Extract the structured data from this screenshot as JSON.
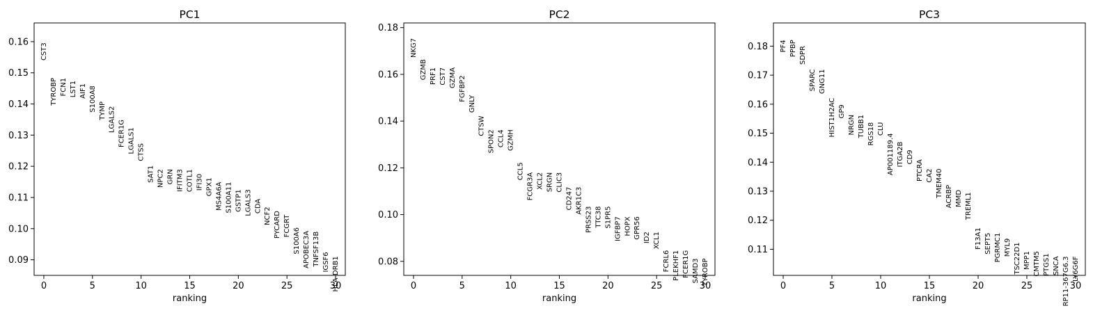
{
  "chart_data": [
    {
      "type": "scatter",
      "title": "PC1",
      "xlabel": "ranking",
      "ylabel": "",
      "xlim": [
        -1,
        31
      ],
      "ylim": [
        0.085,
        0.166
      ],
      "xticks": [
        0,
        5,
        10,
        15,
        20,
        25,
        30
      ],
      "yticks": [
        0.09,
        0.1,
        0.11,
        0.12,
        0.13,
        0.14,
        0.15,
        0.16
      ],
      "ytick_labels": [
        "0.09",
        "0.10",
        "0.11",
        "0.12",
        "0.13",
        "0.14",
        "0.15",
        "0.16"
      ],
      "points": [
        {
          "x": 0,
          "y": 0.1597,
          "label": "CST3"
        },
        {
          "x": 1,
          "y": 0.1484,
          "label": "TYROBP"
        },
        {
          "x": 2,
          "y": 0.1484,
          "label": "FCN1"
        },
        {
          "x": 3,
          "y": 0.1475,
          "label": "LST1"
        },
        {
          "x": 4,
          "y": 0.1466,
          "label": "AIF1"
        },
        {
          "x": 5,
          "y": 0.1459,
          "label": "S100A8"
        },
        {
          "x": 6,
          "y": 0.1408,
          "label": "TYMP"
        },
        {
          "x": 7,
          "y": 0.1393,
          "label": "LGALS2"
        },
        {
          "x": 8,
          "y": 0.135,
          "label": "FCER1G"
        },
        {
          "x": 9,
          "y": 0.1325,
          "label": "LGALS1"
        },
        {
          "x": 10,
          "y": 0.1274,
          "label": "CTSS"
        },
        {
          "x": 11,
          "y": 0.1203,
          "label": "SAT1"
        },
        {
          "x": 12,
          "y": 0.1191,
          "label": "NPC2"
        },
        {
          "x": 13,
          "y": 0.1191,
          "label": "GRN"
        },
        {
          "x": 14,
          "y": 0.1191,
          "label": "IFITM3"
        },
        {
          "x": 15,
          "y": 0.1191,
          "label": "COTL1"
        },
        {
          "x": 16,
          "y": 0.1176,
          "label": "IFI30"
        },
        {
          "x": 17,
          "y": 0.1164,
          "label": "GPX1"
        },
        {
          "x": 18,
          "y": 0.115,
          "label": "MS4A6A"
        },
        {
          "x": 19,
          "y": 0.115,
          "label": "S100A11"
        },
        {
          "x": 20,
          "y": 0.1126,
          "label": "GSTP1"
        },
        {
          "x": 21,
          "y": 0.1126,
          "label": "LGALS3"
        },
        {
          "x": 22,
          "y": 0.1096,
          "label": "CDA"
        },
        {
          "x": 23,
          "y": 0.107,
          "label": "NCF2"
        },
        {
          "x": 24,
          "y": 0.1057,
          "label": "PYCARD"
        },
        {
          "x": 25,
          "y": 0.1045,
          "label": "FCGRT"
        },
        {
          "x": 26,
          "y": 0.1004,
          "label": "S100A6"
        },
        {
          "x": 27,
          "y": 0.0993,
          "label": "APOBEC3A"
        },
        {
          "x": 28,
          "y": 0.0991,
          "label": "TNFSF13B"
        },
        {
          "x": 29,
          "y": 0.0925,
          "label": "IGSF6"
        },
        {
          "x": 30,
          "y": 0.0912,
          "label": "HLA-DRB1"
        }
      ]
    },
    {
      "type": "scatter",
      "title": "PC2",
      "xlabel": "ranking",
      "ylabel": "",
      "xlim": [
        -1,
        31
      ],
      "ylim": [
        0.074,
        0.182
      ],
      "xticks": [
        0,
        5,
        10,
        15,
        20,
        25,
        30
      ],
      "yticks": [
        0.08,
        0.1,
        0.12,
        0.14,
        0.16,
        0.18
      ],
      "ytick_labels": [
        "0.08",
        "0.10",
        "0.12",
        "0.14",
        "0.16",
        "0.18"
      ],
      "points": [
        {
          "x": 0,
          "y": 0.1755,
          "label": "NKG7"
        },
        {
          "x": 1,
          "y": 0.1665,
          "label": "GZMB"
        },
        {
          "x": 2,
          "y": 0.163,
          "label": "PRF1"
        },
        {
          "x": 3,
          "y": 0.163,
          "label": "CST7"
        },
        {
          "x": 4,
          "y": 0.163,
          "label": "GZMA"
        },
        {
          "x": 5,
          "y": 0.1596,
          "label": "FGFBP2"
        },
        {
          "x": 6,
          "y": 0.1512,
          "label": "GNLY"
        },
        {
          "x": 7,
          "y": 0.1423,
          "label": "CTSW"
        },
        {
          "x": 8,
          "y": 0.1364,
          "label": "SPON2"
        },
        {
          "x": 9,
          "y": 0.1364,
          "label": "CCL4"
        },
        {
          "x": 10,
          "y": 0.1364,
          "label": "GZMH"
        },
        {
          "x": 11,
          "y": 0.1224,
          "label": "CCL5"
        },
        {
          "x": 12,
          "y": 0.1181,
          "label": "FCGR3A"
        },
        {
          "x": 13,
          "y": 0.1181,
          "label": "XCL2"
        },
        {
          "x": 14,
          "y": 0.1181,
          "label": "SRGN"
        },
        {
          "x": 15,
          "y": 0.1181,
          "label": "CLIC3"
        },
        {
          "x": 16,
          "y": 0.1119,
          "label": "CD247"
        },
        {
          "x": 17,
          "y": 0.1119,
          "label": "AKR1C3"
        },
        {
          "x": 18,
          "y": 0.1036,
          "label": "PRSS23"
        },
        {
          "x": 19,
          "y": 0.1036,
          "label": "TTC38"
        },
        {
          "x": 20,
          "y": 0.1036,
          "label": "S1PR5"
        },
        {
          "x": 21,
          "y": 0.0992,
          "label": "IGFBP7"
        },
        {
          "x": 22,
          "y": 0.0992,
          "label": "HOPX"
        },
        {
          "x": 23,
          "y": 0.0992,
          "label": "GPR56"
        },
        {
          "x": 24,
          "y": 0.0927,
          "label": "ID2"
        },
        {
          "x": 25,
          "y": 0.0927,
          "label": "XCL1"
        },
        {
          "x": 26,
          "y": 0.0848,
          "label": "FCRL6"
        },
        {
          "x": 27,
          "y": 0.0848,
          "label": "PLEKHF1"
        },
        {
          "x": 28,
          "y": 0.0848,
          "label": "FCER1G"
        },
        {
          "x": 29,
          "y": 0.0813,
          "label": "SAMD3"
        },
        {
          "x": 30,
          "y": 0.0813,
          "label": "TYROBP"
        }
      ]
    },
    {
      "type": "scatter",
      "title": "PC3",
      "xlabel": "ranking",
      "ylabel": "",
      "xlim": [
        -1,
        31
      ],
      "ylim": [
        0.101,
        0.188
      ],
      "xticks": [
        0,
        5,
        10,
        15,
        20,
        25,
        30
      ],
      "yticks": [
        0.11,
        0.12,
        0.13,
        0.14,
        0.15,
        0.16,
        0.17,
        0.18
      ],
      "ytick_labels": [
        "0.11",
        "0.12",
        "0.13",
        "0.14",
        "0.15",
        "0.16",
        "0.17",
        "0.18"
      ],
      "points": [
        {
          "x": 0,
          "y": 0.1822,
          "label": "PF4"
        },
        {
          "x": 1,
          "y": 0.1822,
          "label": "PPBP"
        },
        {
          "x": 2,
          "y": 0.1801,
          "label": "SDPR"
        },
        {
          "x": 3,
          "y": 0.1721,
          "label": "SPARC"
        },
        {
          "x": 4,
          "y": 0.1721,
          "label": "GNG11"
        },
        {
          "x": 5,
          "y": 0.1622,
          "label": "HIST1H2AC"
        },
        {
          "x": 6,
          "y": 0.1599,
          "label": "GP9"
        },
        {
          "x": 7,
          "y": 0.1564,
          "label": "NRGN"
        },
        {
          "x": 8,
          "y": 0.1564,
          "label": "TUBB1"
        },
        {
          "x": 9,
          "y": 0.1538,
          "label": "RGS18"
        },
        {
          "x": 10,
          "y": 0.1538,
          "label": "CLU"
        },
        {
          "x": 11,
          "y": 0.15,
          "label": "AP001189.4"
        },
        {
          "x": 12,
          "y": 0.1471,
          "label": "ITGA2B"
        },
        {
          "x": 13,
          "y": 0.1443,
          "label": "CD9"
        },
        {
          "x": 14,
          "y": 0.141,
          "label": "PTCRA"
        },
        {
          "x": 15,
          "y": 0.1378,
          "label": "CA2"
        },
        {
          "x": 16,
          "y": 0.1378,
          "label": "TMEM40"
        },
        {
          "x": 17,
          "y": 0.1322,
          "label": "ACRBP"
        },
        {
          "x": 18,
          "y": 0.1305,
          "label": "MMD"
        },
        {
          "x": 19,
          "y": 0.1297,
          "label": "TREML1"
        },
        {
          "x": 20,
          "y": 0.1175,
          "label": "F13A1"
        },
        {
          "x": 21,
          "y": 0.1157,
          "label": "SEPT5"
        },
        {
          "x": 22,
          "y": 0.1157,
          "label": "PGRMC1"
        },
        {
          "x": 23,
          "y": 0.1138,
          "label": "MYL9"
        },
        {
          "x": 24,
          "y": 0.1124,
          "label": "TSC22D1"
        },
        {
          "x": 25,
          "y": 0.1094,
          "label": "MPP1"
        },
        {
          "x": 26,
          "y": 0.1094,
          "label": "CMTM5"
        },
        {
          "x": 27,
          "y": 0.1086,
          "label": "PTGS1"
        },
        {
          "x": 28,
          "y": 0.1076,
          "label": "SNCA"
        },
        {
          "x": 29,
          "y": 0.1076,
          "label": "RP11-367G6.3"
        },
        {
          "x": 30,
          "y": 0.1076,
          "label": "LY6G6F"
        }
      ]
    }
  ]
}
